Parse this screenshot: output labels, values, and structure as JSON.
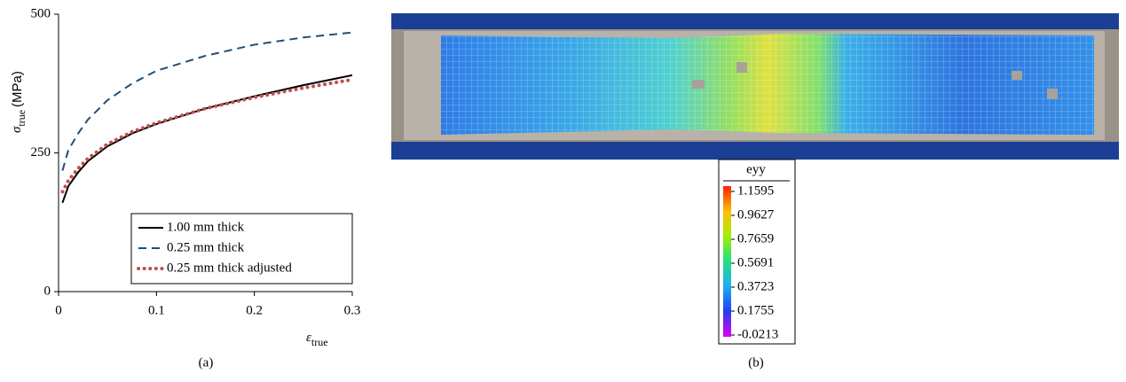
{
  "chart_data": {
    "type": "line",
    "xlabel": "ε",
    "xlabel_sub": "true",
    "ylabel": "σ",
    "ylabel_sub": "true",
    "ylabel_unit": "(MPa)",
    "x": [
      0.004,
      0.01,
      0.02,
      0.03,
      0.05,
      0.075,
      0.1,
      0.15,
      0.2,
      0.25,
      0.3
    ],
    "series": [
      {
        "name": "1.00 mm thick",
        "color": "#000000",
        "dash": "solid",
        "values": [
          160,
          190,
          215,
          235,
          262,
          285,
          302,
          330,
          352,
          372,
          390
        ]
      },
      {
        "name": "0.25 mm thick",
        "color": "#1f4e79",
        "dash": "dashed",
        "values": [
          218,
          255,
          285,
          310,
          345,
          375,
          398,
          425,
          445,
          458,
          467
        ]
      },
      {
        "name": "0.25 mm thick adjusted",
        "color": "#c0504d",
        "dash": "dotted",
        "values": [
          180,
          200,
          222,
          240,
          266,
          288,
          304,
          330,
          350,
          367,
          382
        ]
      }
    ],
    "xlim": [
      0,
      0.3
    ],
    "xticks": [
      0,
      0.1,
      0.2,
      0.3
    ],
    "ylim": [
      0,
      500
    ],
    "yticks": [
      0,
      250,
      500
    ],
    "grid": false,
    "legend": "lower right"
  },
  "panel_labels": [
    "(a)",
    "(b)"
  ],
  "colorbar": {
    "title": "eyy",
    "ticks": [
      1.1595,
      0.9627,
      0.7659,
      0.5691,
      0.3723,
      0.1755,
      -0.0213
    ]
  }
}
